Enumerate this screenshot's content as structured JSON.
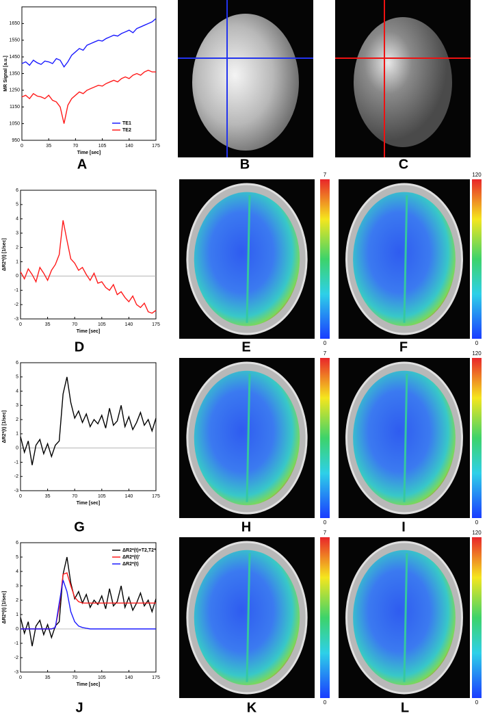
{
  "chart_data": [
    {
      "type": "line",
      "xlabel": "Time [sec]",
      "ylabel": "MR Signal [a.u.]",
      "x": [
        0,
        5,
        10,
        15,
        20,
        25,
        30,
        35,
        40,
        45,
        50,
        55,
        60,
        65,
        70,
        75,
        80,
        85,
        90,
        95,
        100,
        105,
        110,
        115,
        120,
        125,
        130,
        135,
        140,
        145,
        150,
        155,
        160,
        165,
        170,
        175
      ],
      "series": [
        {
          "name": "TE1",
          "color": "#1a1aff",
          "values": [
            1410,
            1420,
            1400,
            1430,
            1415,
            1405,
            1425,
            1420,
            1410,
            1440,
            1430,
            1390,
            1420,
            1460,
            1480,
            1500,
            1490,
            1520,
            1530,
            1540,
            1550,
            1545,
            1560,
            1570,
            1580,
            1575,
            1590,
            1600,
            1610,
            1595,
            1620,
            1630,
            1640,
            1650,
            1660,
            1680
          ]
        },
        {
          "name": "TE2",
          "color": "#ff1a1a",
          "values": [
            1210,
            1220,
            1200,
            1230,
            1215,
            1210,
            1200,
            1220,
            1190,
            1180,
            1150,
            1050,
            1160,
            1200,
            1220,
            1240,
            1230,
            1250,
            1260,
            1270,
            1280,
            1275,
            1290,
            1300,
            1310,
            1300,
            1320,
            1330,
            1320,
            1340,
            1350,
            1340,
            1360,
            1370,
            1360,
            1360
          ]
        }
      ],
      "xlim": [
        0,
        175
      ],
      "xticks": [
        0,
        35,
        70,
        105,
        140,
        175
      ],
      "ylim": [
        950,
        1750
      ],
      "yticks": [
        950,
        1050,
        1150,
        1250,
        1350,
        1450,
        1550,
        1650
      ],
      "legend": "lower right",
      "zero_line": false
    },
    {
      "type": "line",
      "xlabel": "Time [sec]",
      "ylabel": "ΔR2*(t)  [1/sec]",
      "x": [
        0,
        5,
        10,
        15,
        20,
        25,
        30,
        35,
        40,
        45,
        50,
        55,
        60,
        65,
        70,
        75,
        80,
        85,
        90,
        95,
        100,
        105,
        110,
        115,
        120,
        125,
        130,
        135,
        140,
        145,
        150,
        155,
        160,
        165,
        170,
        175
      ],
      "series": [
        {
          "color": "#ff1a1a",
          "values": [
            0.3,
            -0.2,
            0.5,
            0.1,
            -0.4,
            0.6,
            0.2,
            -0.3,
            0.4,
            0.8,
            1.5,
            3.9,
            2.5,
            1.2,
            0.9,
            0.4,
            0.6,
            0.1,
            -0.3,
            0.2,
            -0.5,
            -0.4,
            -0.8,
            -1.0,
            -0.6,
            -1.3,
            -1.1,
            -1.5,
            -1.8,
            -1.4,
            -2.0,
            -2.2,
            -1.9,
            -2.5,
            -2.6,
            -2.4
          ]
        }
      ],
      "xlim": [
        0,
        175
      ],
      "xticks": [
        0,
        35,
        70,
        105,
        140,
        175
      ],
      "ylim": [
        -3,
        6
      ],
      "yticks": [
        -3,
        -2,
        -1,
        0,
        1,
        2,
        3,
        4,
        5,
        6
      ],
      "zero_line": true
    },
    {
      "type": "line",
      "xlabel": "Time [sec]",
      "ylabel": "ΔR2*(t)  [1/sec]",
      "x": [
        0,
        5,
        10,
        15,
        20,
        25,
        30,
        35,
        40,
        45,
        50,
        55,
        60,
        65,
        70,
        75,
        80,
        85,
        90,
        95,
        100,
        105,
        110,
        115,
        120,
        125,
        130,
        135,
        140,
        145,
        150,
        155,
        160,
        165,
        170,
        175
      ],
      "series": [
        {
          "color": "#000000",
          "values": [
            0.8,
            -0.3,
            0.5,
            -1.2,
            0.2,
            0.6,
            -0.4,
            0.3,
            -0.6,
            0.2,
            0.5,
            3.8,
            5.0,
            3.2,
            2.1,
            2.6,
            1.8,
            2.4,
            1.5,
            2.0,
            1.7,
            2.3,
            1.4,
            2.8,
            1.6,
            1.9,
            3.0,
            1.5,
            2.2,
            1.3,
            1.8,
            2.5,
            1.6,
            2.0,
            1.2,
            2.1
          ]
        }
      ],
      "xlim": [
        0,
        175
      ],
      "xticks": [
        0,
        35,
        70,
        105,
        140,
        175
      ],
      "ylim": [
        -3,
        6
      ],
      "yticks": [
        -3,
        -2,
        -1,
        0,
        1,
        2,
        3,
        4,
        5,
        6
      ],
      "zero_line": true
    },
    {
      "type": "line",
      "xlabel": "Time [sec]",
      "ylabel": "ΔR2*(t)  [1/sec]",
      "x": [
        0,
        5,
        10,
        15,
        20,
        25,
        30,
        35,
        40,
        45,
        50,
        55,
        60,
        65,
        70,
        75,
        80,
        85,
        90,
        95,
        100,
        105,
        110,
        115,
        120,
        125,
        130,
        135,
        140,
        145,
        150,
        155,
        160,
        165,
        170,
        175
      ],
      "series": [
        {
          "name": "ΔR2*(t)+T2,T2*",
          "color": "#000000",
          "values": [
            0.8,
            -0.3,
            0.5,
            -1.2,
            0.2,
            0.6,
            -0.4,
            0.3,
            -0.6,
            0.2,
            0.5,
            3.8,
            5.0,
            3.2,
            2.1,
            2.6,
            1.8,
            2.4,
            1.5,
            2.0,
            1.7,
            2.3,
            1.4,
            2.8,
            1.6,
            1.9,
            3.0,
            1.5,
            2.2,
            1.3,
            1.8,
            2.5,
            1.6,
            2.0,
            1.2,
            2.1
          ]
        },
        {
          "name": "ΔR2*(t)'",
          "color": "#ff1a1a",
          "values": [
            0,
            0,
            0,
            0,
            0,
            0,
            0,
            0,
            0,
            0.1,
            1.5,
            3.8,
            3.9,
            3.0,
            2.2,
            1.9,
            1.8,
            1.8,
            1.8,
            1.8,
            1.8,
            1.8,
            1.8,
            1.8,
            1.8,
            1.8,
            1.8,
            1.8,
            1.8,
            1.8,
            1.8,
            1.8,
            1.8,
            1.8,
            1.8,
            1.8
          ]
        },
        {
          "name": "ΔR2*(t)",
          "color": "#1a1aff",
          "values": [
            0,
            0,
            0,
            0,
            0,
            0,
            0,
            0,
            0,
            0.1,
            1.8,
            3.4,
            2.6,
            1.2,
            0.5,
            0.2,
            0.1,
            0.05,
            0,
            0,
            0,
            0,
            0,
            0,
            0,
            0,
            0,
            0,
            0,
            0,
            0,
            0,
            0,
            0,
            0,
            0
          ]
        }
      ],
      "xlim": [
        0,
        175
      ],
      "xticks": [
        0,
        35,
        70,
        105,
        140,
        175
      ],
      "ylim": [
        -3,
        6
      ],
      "yticks": [
        -3,
        -2,
        -1,
        0,
        1,
        2,
        3,
        4,
        5,
        6
      ],
      "legend": "upper right",
      "zero_line": true
    }
  ],
  "panel_labels": [
    "A",
    "B",
    "C",
    "D",
    "E",
    "F",
    "G",
    "H",
    "I",
    "J",
    "K",
    "L"
  ],
  "colorbars": [
    {
      "max": 7,
      "min": 0
    },
    {
      "max": 120,
      "min": 0
    },
    {
      "max": 7,
      "min": 0
    },
    {
      "max": 120,
      "min": 0
    },
    {
      "max": 7,
      "min": 0
    },
    {
      "max": 120,
      "min": 0
    }
  ]
}
